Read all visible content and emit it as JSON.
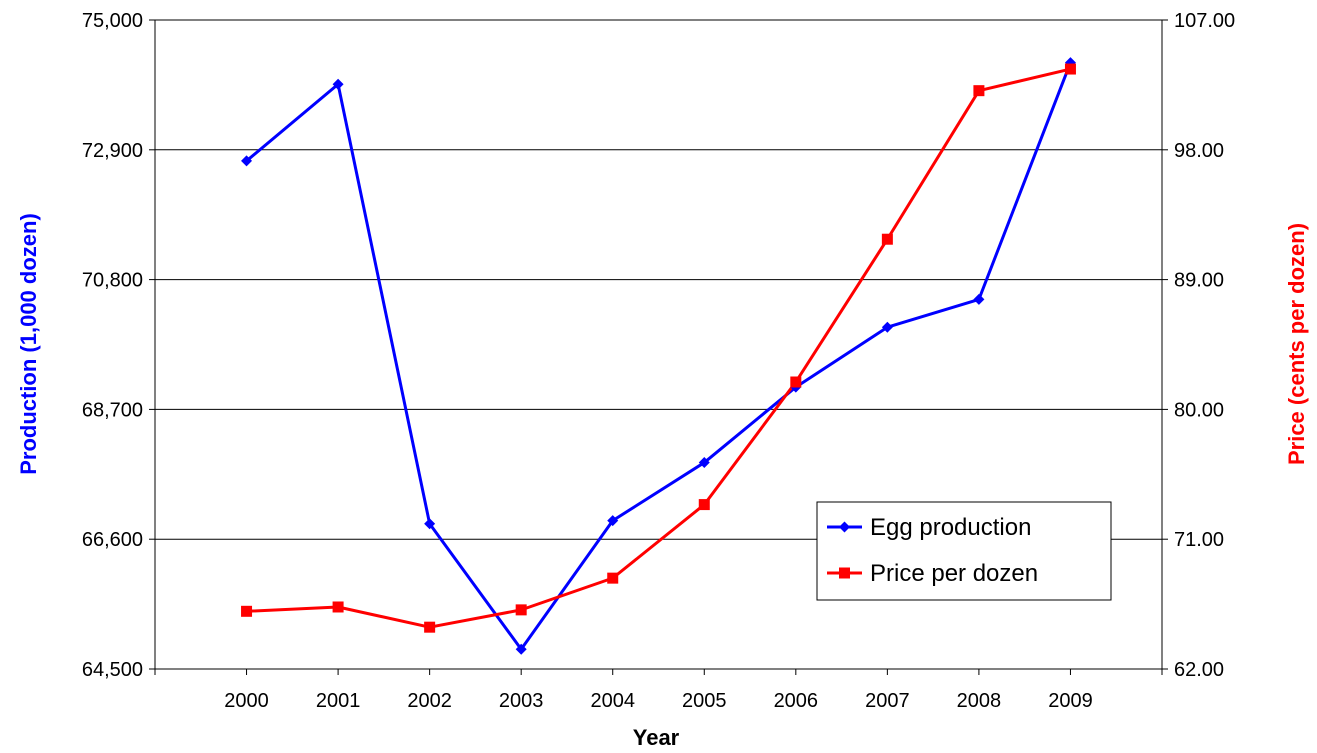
{
  "chart_data": {
    "type": "line",
    "title": "",
    "xlabel": "Year",
    "ylabel_left": "Production (1,000 dozen)",
    "ylabel_right": "Price (cents per dozen)",
    "categories": [
      "2000",
      "2001",
      "2002",
      "2003",
      "2004",
      "2005",
      "2006",
      "2007",
      "2008",
      "2009"
    ],
    "y_left_ticks": [
      "64,500",
      "66,600",
      "68,700",
      "70,800",
      "72,900",
      "75,000"
    ],
    "y_right_ticks": [
      "62.00",
      "71.00",
      "80.00",
      "89.00",
      "98.00",
      "107.00"
    ],
    "y_left_range": [
      64500,
      75000
    ],
    "y_right_range": [
      62,
      107
    ],
    "grid": true,
    "legend_position": "lower-right",
    "series": [
      {
        "name": "Egg production",
        "axis": "left",
        "color": "#0000FF",
        "marker": "diamond",
        "values": [
          72720,
          73960,
          66850,
          64820,
          66900,
          67840,
          69060,
          70030,
          70480,
          74310
        ]
      },
      {
        "name": "Price per dozen",
        "axis": "right",
        "color": "#FF0000",
        "marker": "square",
        "values": [
          66.0,
          66.3,
          64.9,
          66.1,
          68.3,
          73.4,
          81.9,
          91.8,
          102.1,
          103.6
        ]
      }
    ]
  }
}
